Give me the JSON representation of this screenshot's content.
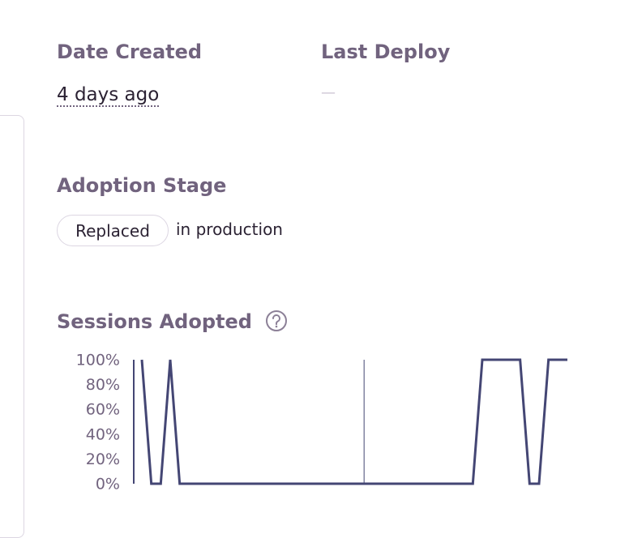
{
  "date_created": {
    "label": "Date Created",
    "value": "4 days ago"
  },
  "last_deploy": {
    "label": "Last Deploy",
    "value": "—"
  },
  "adoption_stage": {
    "label": "Adoption Stage",
    "badge": "Replaced",
    "suffix": "in production"
  },
  "sessions_adopted": {
    "label": "Sessions Adopted"
  },
  "chart_data": {
    "type": "line",
    "color": "#444674",
    "values": [
      100,
      0,
      0,
      100,
      0,
      0,
      0,
      0,
      0,
      0,
      0,
      0,
      0,
      0,
      0,
      0,
      0,
      0,
      0,
      0,
      0,
      0,
      0,
      0,
      0,
      0,
      0,
      0,
      0,
      0,
      0,
      0,
      0,
      0,
      0,
      0,
      100,
      100,
      100,
      100,
      100,
      0,
      0,
      100,
      100,
      100
    ],
    "markers": [
      23.5
    ],
    "ylim": [
      0,
      100
    ],
    "yticks": [
      {
        "value": 0,
        "label": "0%"
      },
      {
        "value": 20,
        "label": "20%"
      },
      {
        "value": 40,
        "label": "40%"
      },
      {
        "value": 60,
        "label": "60%"
      },
      {
        "value": 80,
        "label": "80%"
      },
      {
        "value": 100,
        "label": "100%"
      }
    ]
  }
}
